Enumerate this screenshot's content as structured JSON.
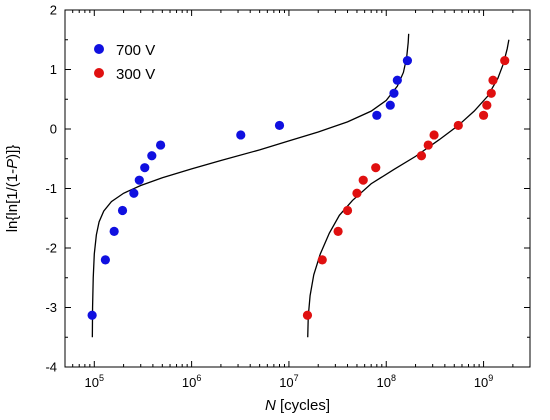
{
  "chart_data": {
    "type": "scatter",
    "title": "",
    "xlabel_italic": "N",
    "xlabel_rest": " [cycles]",
    "ylabel_prefix": "ln{ln[1/(1-",
    "ylabel_italic": "P",
    "ylabel_suffix": ")]}",
    "xscale": "log",
    "xlim": [
      50000,
      3000000000
    ],
    "ylim": [
      -4,
      2
    ],
    "x_ticks": [
      {
        "value": 100000,
        "base": "10",
        "exp": "5"
      },
      {
        "value": 1000000,
        "base": "10",
        "exp": "6"
      },
      {
        "value": 10000000,
        "base": "10",
        "exp": "7"
      },
      {
        "value": 100000000,
        "base": "10",
        "exp": "8"
      },
      {
        "value": 1000000000,
        "base": "10",
        "exp": "9"
      }
    ],
    "y_ticks": [
      {
        "value": -4,
        "label": "-4"
      },
      {
        "value": -3,
        "label": "-3"
      },
      {
        "value": -2,
        "label": "-2"
      },
      {
        "value": -1,
        "label": "-1"
      },
      {
        "value": 0,
        "label": "0"
      },
      {
        "value": 1,
        "label": "1"
      },
      {
        "value": 2,
        "label": "2"
      }
    ],
    "grid": false,
    "legend_position": "top-left",
    "series": [
      {
        "name": "700 V",
        "color": "#1010e0",
        "points": [
          {
            "x": 95000,
            "y": -3.13
          },
          {
            "x": 130000,
            "y": -2.2
          },
          {
            "x": 160000,
            "y": -1.72
          },
          {
            "x": 195000,
            "y": -1.37
          },
          {
            "x": 255000,
            "y": -1.08
          },
          {
            "x": 290000,
            "y": -0.86
          },
          {
            "x": 330000,
            "y": -0.65
          },
          {
            "x": 390000,
            "y": -0.45
          },
          {
            "x": 480000,
            "y": -0.27
          },
          {
            "x": 3200000,
            "y": -0.1
          },
          {
            "x": 8000000,
            "y": 0.06
          },
          {
            "x": 80000000,
            "y": 0.23
          },
          {
            "x": 110000000,
            "y": 0.4
          },
          {
            "x": 120000000,
            "y": 0.6
          },
          {
            "x": 130000000,
            "y": 0.82
          },
          {
            "x": 165000000,
            "y": 1.15
          }
        ]
      },
      {
        "name": "300 V",
        "color": "#e01010",
        "points": [
          {
            "x": 15500000,
            "y": -3.13
          },
          {
            "x": 22000000,
            "y": -2.2
          },
          {
            "x": 32000000,
            "y": -1.72
          },
          {
            "x": 40000000,
            "y": -1.37
          },
          {
            "x": 50000000,
            "y": -1.08
          },
          {
            "x": 58000000,
            "y": -0.86
          },
          {
            "x": 78000000,
            "y": -0.65
          },
          {
            "x": 230000000,
            "y": -0.45
          },
          {
            "x": 270000000,
            "y": -0.27
          },
          {
            "x": 310000000,
            "y": -0.1
          },
          {
            "x": 550000000,
            "y": 0.06
          },
          {
            "x": 1000000000,
            "y": 0.23
          },
          {
            "x": 1080000000,
            "y": 0.4
          },
          {
            "x": 1200000000,
            "y": 0.6
          },
          {
            "x": 1250000000,
            "y": 0.82
          },
          {
            "x": 1650000000,
            "y": 1.15
          }
        ]
      }
    ],
    "fit_curves": [
      {
        "for": "700 V",
        "color": "#000000",
        "points": [
          {
            "x": 95500,
            "y": -3.5
          },
          {
            "x": 96000,
            "y": -3.0
          },
          {
            "x": 97500,
            "y": -2.5
          },
          {
            "x": 100000,
            "y": -2.1
          },
          {
            "x": 105000,
            "y": -1.78
          },
          {
            "x": 112000,
            "y": -1.56
          },
          {
            "x": 125000,
            "y": -1.38
          },
          {
            "x": 150000,
            "y": -1.22
          },
          {
            "x": 200000,
            "y": -1.08
          },
          {
            "x": 300000,
            "y": -0.95
          },
          {
            "x": 500000,
            "y": -0.82
          },
          {
            "x": 1000000,
            "y": -0.67
          },
          {
            "x": 2000000,
            "y": -0.53
          },
          {
            "x": 5000000,
            "y": -0.35
          },
          {
            "x": 10000000,
            "y": -0.2
          },
          {
            "x": 20000000,
            "y": -0.05
          },
          {
            "x": 40000000,
            "y": 0.12
          },
          {
            "x": 70000000,
            "y": 0.3
          },
          {
            "x": 100000000,
            "y": 0.48
          },
          {
            "x": 130000000,
            "y": 0.72
          },
          {
            "x": 150000000,
            "y": 0.95
          },
          {
            "x": 162000000,
            "y": 1.2
          },
          {
            "x": 168000000,
            "y": 1.45
          },
          {
            "x": 170000000,
            "y": 1.6
          }
        ]
      },
      {
        "for": "300 V",
        "color": "#000000",
        "points": [
          {
            "x": 15600000,
            "y": -3.5
          },
          {
            "x": 15800000,
            "y": -3.15
          },
          {
            "x": 16500000,
            "y": -2.8
          },
          {
            "x": 18000000,
            "y": -2.45
          },
          {
            "x": 21000000,
            "y": -2.1
          },
          {
            "x": 26000000,
            "y": -1.75
          },
          {
            "x": 33000000,
            "y": -1.45
          },
          {
            "x": 45000000,
            "y": -1.2
          },
          {
            "x": 70000000,
            "y": -0.92
          },
          {
            "x": 120000000,
            "y": -0.68
          },
          {
            "x": 200000000,
            "y": -0.46
          },
          {
            "x": 350000000,
            "y": -0.18
          },
          {
            "x": 550000000,
            "y": 0.06
          },
          {
            "x": 800000000,
            "y": 0.3
          },
          {
            "x": 1100000000,
            "y": 0.55
          },
          {
            "x": 1400000000,
            "y": 0.85
          },
          {
            "x": 1600000000,
            "y": 1.1
          },
          {
            "x": 1750000000,
            "y": 1.35
          },
          {
            "x": 1820000000,
            "y": 1.5
          }
        ]
      }
    ]
  }
}
